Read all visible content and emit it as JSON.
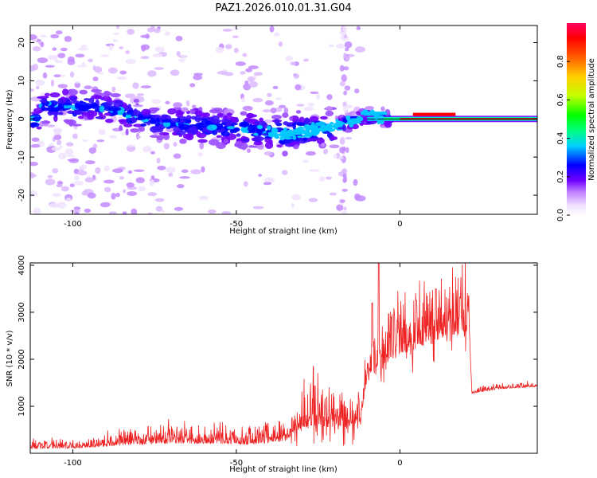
{
  "figure": {
    "title": "PAZ1.2026.010.01.31.G04"
  },
  "chart_data": [
    {
      "type": "heatmap",
      "xlabel": "Height of straight line (km)",
      "ylabel": "Frequency (Hz)",
      "xlim": [
        -113,
        42
      ],
      "ylim": [
        -25,
        24.5
      ],
      "xticks": [
        -100,
        -50,
        0
      ],
      "yticks": [
        -20,
        -10,
        0,
        10,
        20
      ],
      "colorbar": {
        "label": "Normalized spectral amplitude",
        "range": [
          0,
          1
        ],
        "ticks": [
          0.0,
          0.2,
          0.4,
          0.6,
          0.8
        ]
      },
      "description_ridge": [
        {
          "x": -110,
          "f": 3.5
        },
        {
          "x": -90,
          "f": 3
        },
        {
          "x": -75,
          "f": -1
        },
        {
          "x": -55,
          "f": -2
        },
        {
          "x": -35,
          "f": -4
        },
        {
          "x": -20,
          "f": -2
        },
        {
          "x": -10,
          "f": 0.5
        },
        {
          "x": 0,
          "f": 0
        },
        {
          "x": 42,
          "f": 0
        }
      ]
    },
    {
      "type": "line",
      "xlabel": "Height of straight line (km)",
      "ylabel": "SNR (10 * v/v)",
      "xlim": [
        -113,
        42
      ],
      "ylim": [
        0,
        4050
      ],
      "xticks": [
        -100,
        -50,
        0
      ],
      "yticks": [
        1000,
        2000,
        3000,
        4000
      ],
      "series": [
        {
          "color": "#ee2222",
          "envelope": [
            {
              "x": -113,
              "y": 150
            },
            {
              "x": -100,
              "y": 160
            },
            {
              "x": -85,
              "y": 260
            },
            {
              "x": -70,
              "y": 330
            },
            {
              "x": -55,
              "y": 320
            },
            {
              "x": -45,
              "y": 280
            },
            {
              "x": -35,
              "y": 400
            },
            {
              "x": -30,
              "y": 800
            },
            {
              "x": -25,
              "y": 900
            },
            {
              "x": -18,
              "y": 700
            },
            {
              "x": -12,
              "y": 900
            },
            {
              "x": -10,
              "y": 1700
            },
            {
              "x": -8,
              "y": 2100
            },
            {
              "x": -5,
              "y": 2200
            },
            {
              "x": 0,
              "y": 2400
            },
            {
              "x": 5,
              "y": 2600
            },
            {
              "x": 10,
              "y": 2700
            },
            {
              "x": 15,
              "y": 2900
            },
            {
              "x": 21,
              "y": 3000
            },
            {
              "x": 22,
              "y": 1300
            },
            {
              "x": 30,
              "y": 1400
            },
            {
              "x": 42,
              "y": 1450
            }
          ],
          "peaks": [
            {
              "x": -26.5,
              "y": 1850
            },
            {
              "x": -8.5,
              "y": 3200
            },
            {
              "x": -6.5,
              "y": 4050
            },
            {
              "x": 5,
              "y": 3250
            },
            {
              "x": 11,
              "y": 3500
            },
            {
              "x": 18.5,
              "y": 3300
            },
            {
              "x": 21,
              "y": 3350
            }
          ]
        }
      ]
    }
  ]
}
